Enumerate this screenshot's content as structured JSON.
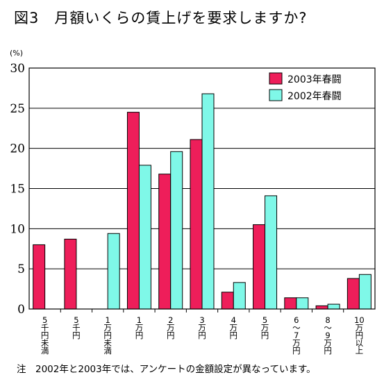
{
  "title": "図3　月額いくらの賃上げを要求しますか?",
  "note": "注　2002年と2003年では、アンケートの金額設定が異なっています。",
  "chart_data": {
    "type": "bar",
    "title": "図3　月額いくらの賃上げを要求しますか?",
    "ylabel": "(%)",
    "xlabel": "",
    "ylim": [
      0,
      30
    ],
    "yticks": [
      0,
      5,
      10,
      15,
      20,
      25,
      30
    ],
    "grid": true,
    "legend_position": "top-right",
    "categories": [
      [
        "5",
        "千",
        "円",
        "未",
        "満"
      ],
      [
        "5",
        "千",
        "円"
      ],
      [
        "1",
        "万",
        "円",
        "未",
        "満"
      ],
      [
        "1",
        "万",
        "円"
      ],
      [
        "2",
        "万",
        "円"
      ],
      [
        "3",
        "万",
        "円"
      ],
      [
        "4",
        "万",
        "円"
      ],
      [
        "5",
        "万",
        "円"
      ],
      [
        "6",
        "〜",
        "7",
        "万",
        "円"
      ],
      [
        "8",
        "〜",
        "9",
        "万",
        "円"
      ],
      [
        "10",
        "万",
        "円",
        "以",
        "上"
      ]
    ],
    "series": [
      {
        "name": "2003年春闘",
        "color": "#ee1e5a",
        "values": [
          8.0,
          8.7,
          null,
          24.5,
          16.8,
          21.1,
          2.1,
          10.5,
          1.4,
          0.4,
          3.8
        ]
      },
      {
        "name": "2002年春闘",
        "color": "#7ff8e8",
        "values": [
          null,
          null,
          9.4,
          17.9,
          19.6,
          26.8,
          3.3,
          14.1,
          1.4,
          0.6,
          4.3
        ]
      }
    ]
  }
}
